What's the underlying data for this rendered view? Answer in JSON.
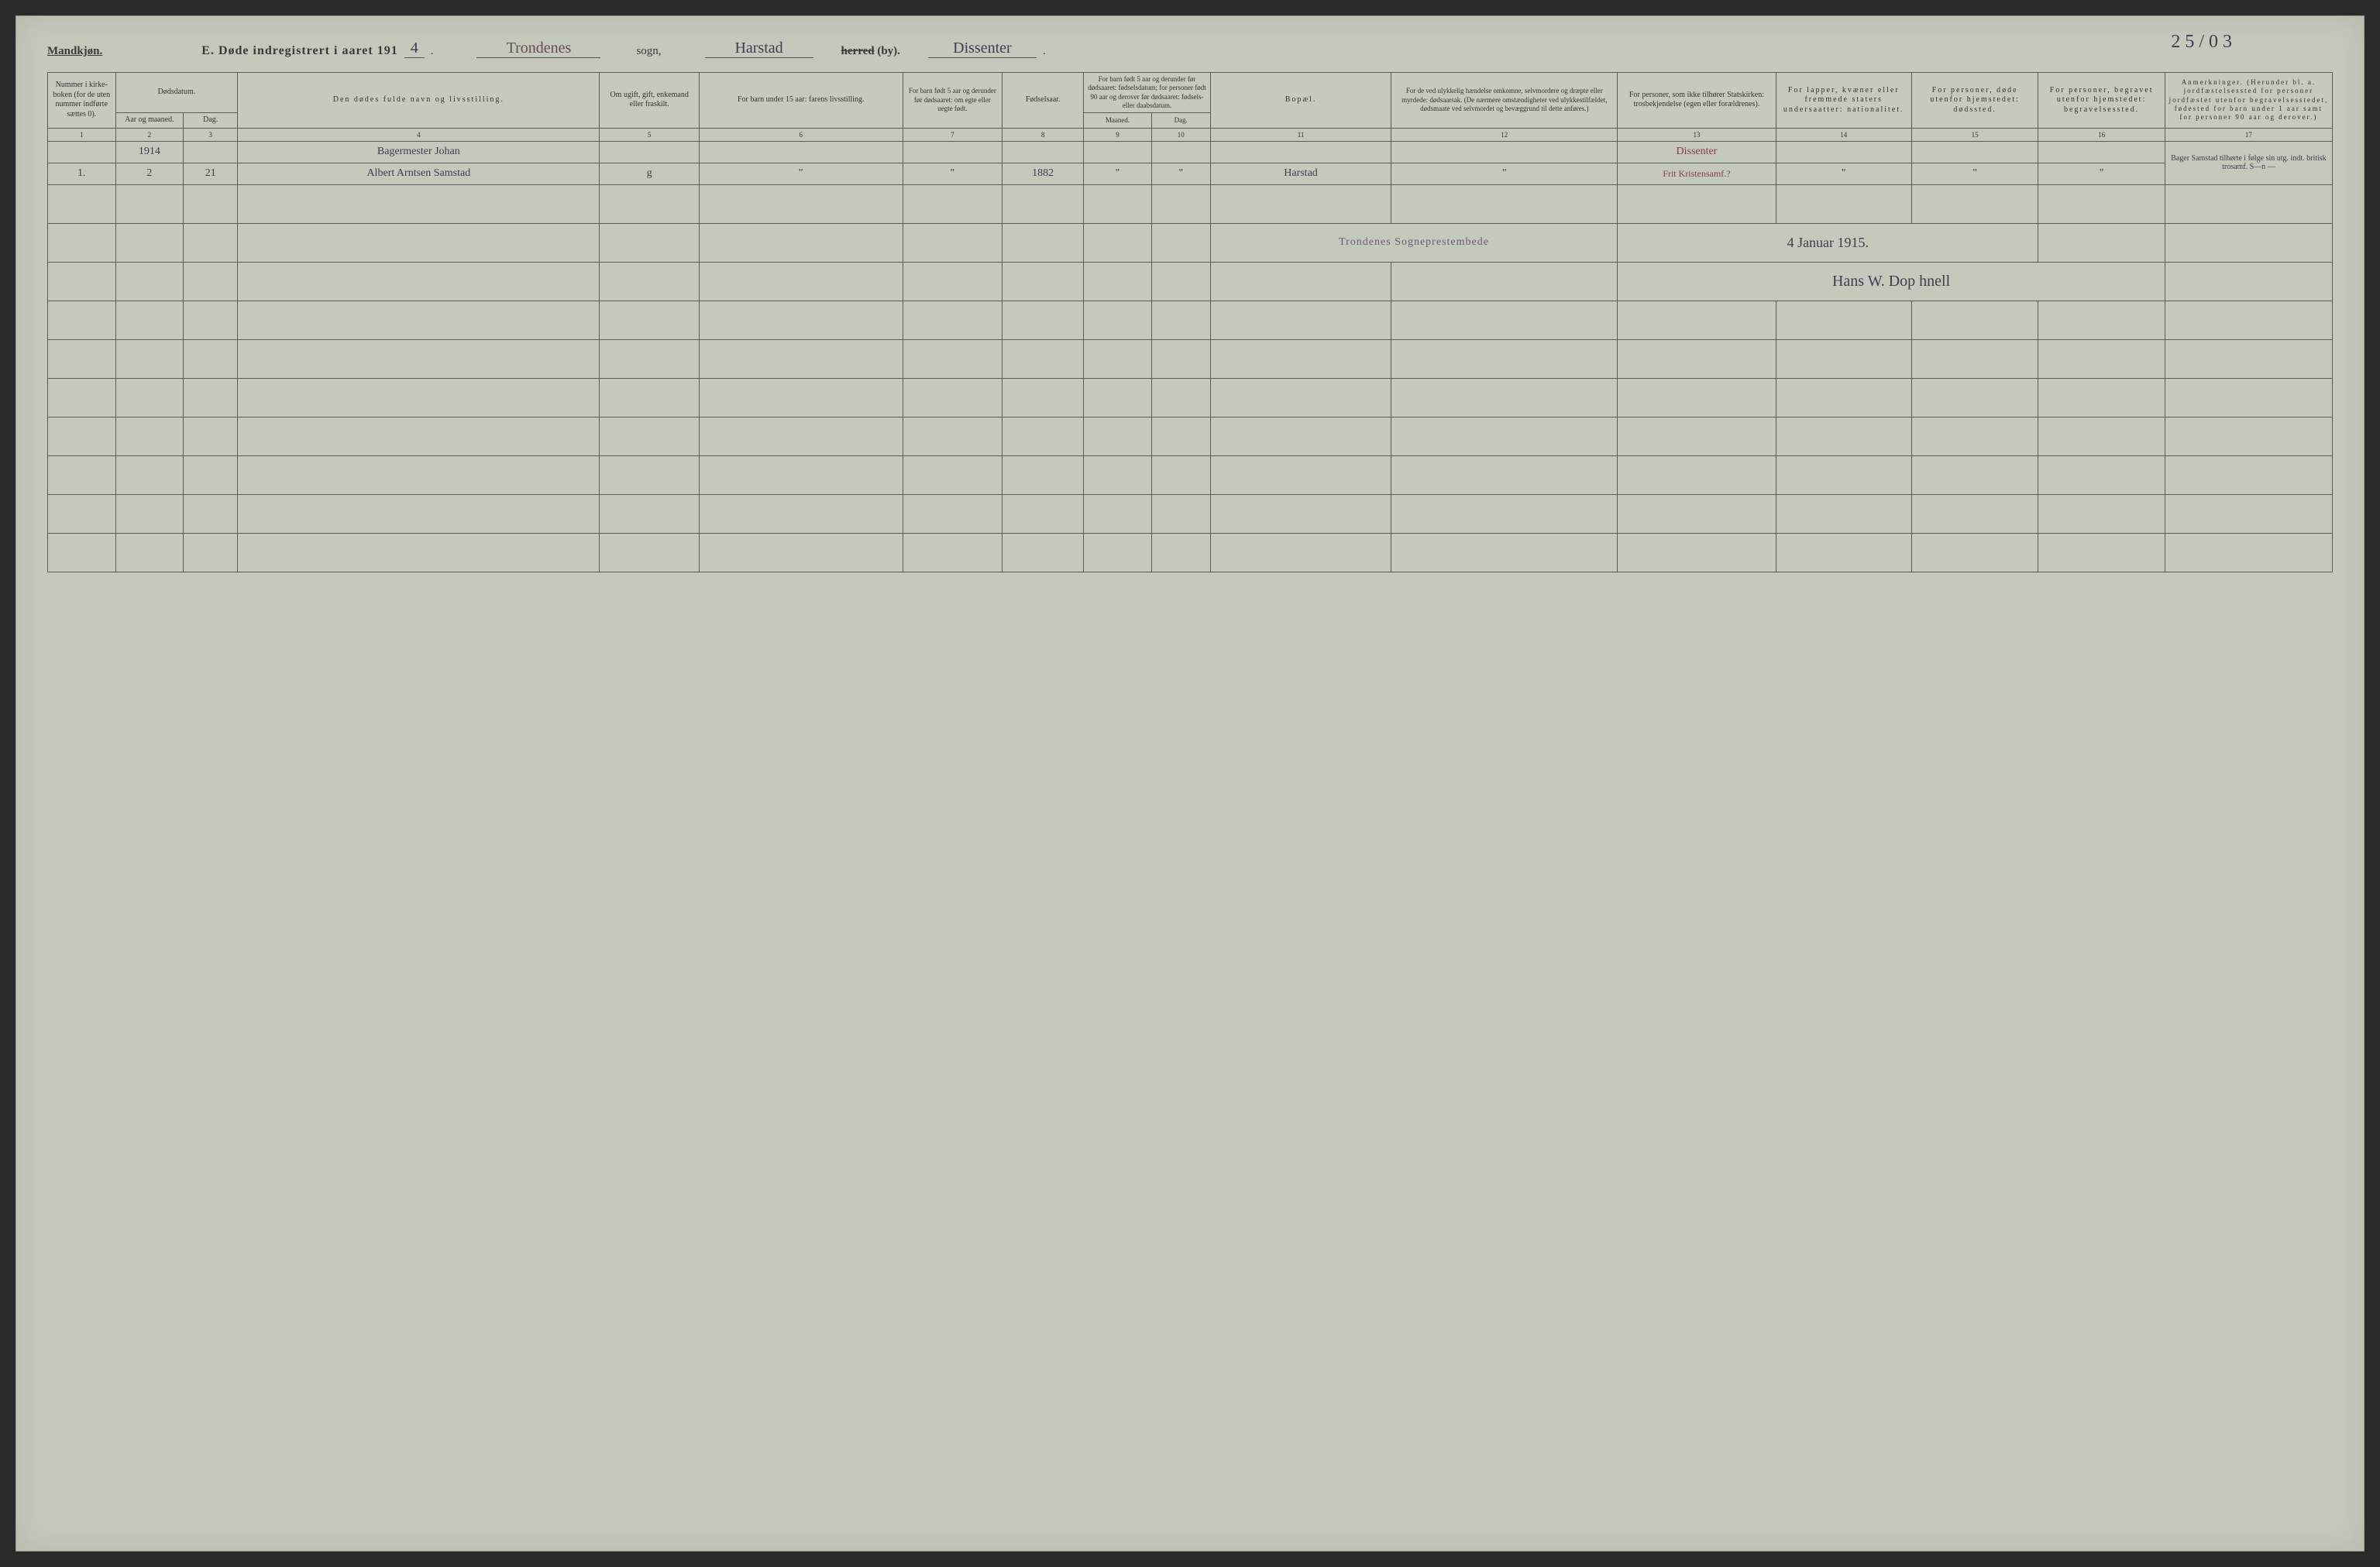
{
  "colors": {
    "paper": "#c3c9bb",
    "ink": "#333333",
    "rule": "#5a5a5a",
    "handwriting": "#3d3d55",
    "red_ink": "#8b3a4a",
    "stamp": "#6b5a7a"
  },
  "page_number_hand": "2 5 / 0 3",
  "header": {
    "gender": "Mandkjøn.",
    "title_bold": "E.   Døde indregistrert i aaret 191",
    "year_suffix": "4",
    "period": ".",
    "sogn_value": "Trondenes",
    "sogn_label": "sogn,",
    "herred_value": "Harstad",
    "herred_label_strike": "herred",
    "herred_label_rest": " (by).",
    "extra_value": "Dissenter"
  },
  "columns": {
    "c1": "Nummer i kirke­boken (for de uten nummer indførte sættes 0).",
    "c2_top": "Dødsdatum.",
    "c2a": "Aar og maaned.",
    "c2b": "Dag.",
    "c4": "Den dødes fulde navn og livsstilling.",
    "c5": "Om ugift, gift, enke­mand eller fraskilt.",
    "c6": "For barn under 15 aar: farens livsstilling.",
    "c7": "For barn født 5 aar og derunder før døds­aaret: om egte eller uegte født.",
    "c8": "Fødsels­aar.",
    "c9_top": "For barn født 5 aar og der­under før dødsaaret: fødselsdatum; for personer født 90 aar og derover før dødsaaret: fødsels- eller daabsdatum.",
    "c9a": "Maaned.",
    "c9b": "Dag.",
    "c11": "Bopæl.",
    "c12": "For de ved ulykkelig hændelse omkomne, selvmordere og dræpte eller myrdede: dødsaarsak. (De nærmere omstæn­digheter ved ulykkes­tilfældet, dødsmaate ved selvmordet og bevæg­grund til dette anføres.)",
    "c13": "For personer, som ikke tilhører Statskirken: trosbekjendelse (egen eller forældrenes).",
    "c14": "For lapper, kvæner eller fremmede staters undersaatter: nationalitet.",
    "c15": "For personer, døde utenfor hjemstedet: dødssted.",
    "c16": "For personer, begravet utenfor hjemstedet: begravelsessted.",
    "c17": "Anmerkninger. (Herunder bl. a. jordfæstelsessted for personer jordfæstet utenfor begravelses­stedet, fødested for barn under 1 aar samt for personer 90 aar og derover.)"
  },
  "colnums": [
    "1",
    "2",
    "3",
    "4",
    "5",
    "6",
    "7",
    "8",
    "9",
    "10",
    "11",
    "12",
    "13",
    "14",
    "15",
    "16",
    "17"
  ],
  "entry": {
    "year_row": {
      "aar": "1914",
      "navn_line1": "Bagermester Johan"
    },
    "main_row": {
      "num": "1.",
      "aar": "2",
      "dag": "21",
      "navn_line2": "Albert Arntsen Samstad",
      "stand": "g",
      "c6": "\"",
      "c7": "\"",
      "fodselsaar": "1882",
      "c9a": "\"",
      "c9b": "\"",
      "bopael": "Harstad",
      "c12": "\"",
      "c13_top": "Dissenter",
      "c13": "Frit Kristensamf.?",
      "c14": "\"",
      "c15": "\"",
      "c16": "\"",
      "c17": "Bager Samstad tilhørte i følge sin utg. indt. britisk trosamf. S—n —"
    }
  },
  "stamp_text": "Trondenes Sogneprestembede",
  "sign_date": "4 Januar 1915.",
  "signature": "Hans W. Dop hnell",
  "layout": {
    "widths_pct": [
      3.0,
      3.0,
      2.4,
      16.0,
      4.4,
      9.0,
      4.4,
      3.6,
      3.0,
      2.6,
      8.0,
      10.0,
      7.0,
      6.0,
      5.6,
      5.6,
      7.4
    ],
    "empty_rows": 10
  },
  "typography": {
    "header_font_pt": 12,
    "th_font_pt": 7.5,
    "hand_font_pt": 15
  }
}
